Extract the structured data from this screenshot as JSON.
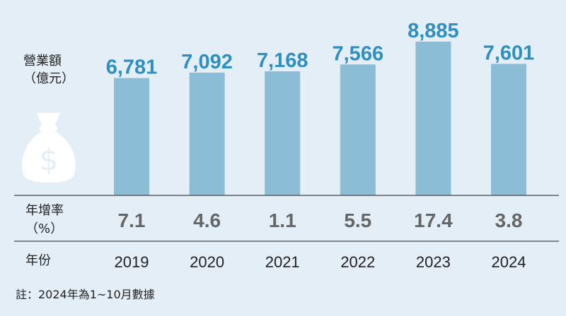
{
  "chart_data": {
    "type": "bar",
    "categories": [
      "2019",
      "2020",
      "2021",
      "2022",
      "2023",
      "2024"
    ],
    "values": [
      6781,
      7092,
      7168,
      7566,
      8885,
      7601
    ],
    "value_labels": [
      "6,781",
      "7,092",
      "7,168",
      "7,566",
      "8,885",
      "7,601"
    ],
    "growth_rates": [
      "7.1",
      "4.6",
      "1.1",
      "5.5",
      "17.4",
      "3.8"
    ],
    "ylabel": [
      "營業額",
      "（億元）"
    ],
    "growth_label": [
      "年增率",
      "（%）"
    ],
    "year_label": "年份",
    "ylim": [
      0,
      9200
    ],
    "grid": false,
    "colors": {
      "bar": "#8cbdd6",
      "value_label": "#2e8fc0",
      "rate": "#666666",
      "background": "#e4eef6",
      "rule": "#444444"
    }
  },
  "icons": {
    "decoration": "money-bag-icon"
  },
  "footnote": "註：2024年為1~10月數據"
}
